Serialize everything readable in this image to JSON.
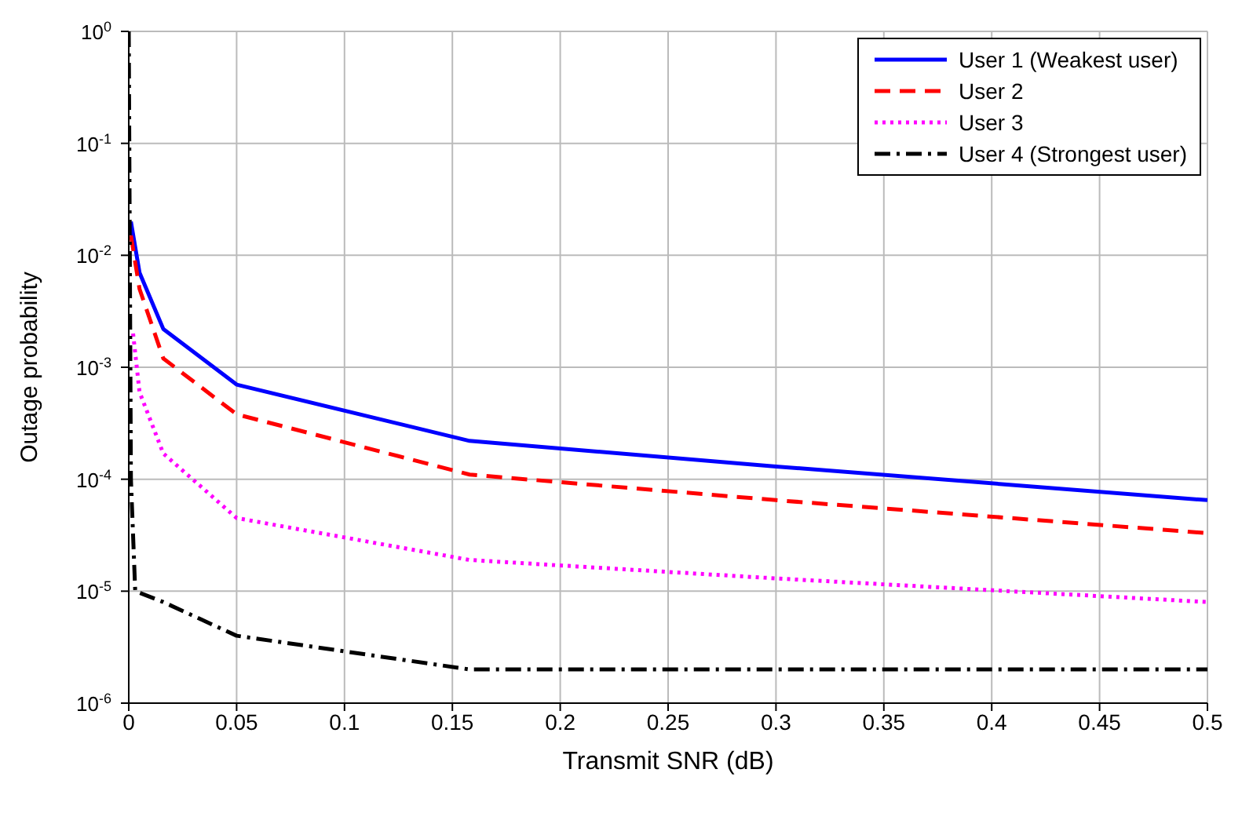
{
  "chart_data": {
    "type": "line",
    "xlabel": "Transmit SNR  (dB)",
    "ylabel": "Outage probability",
    "log": "y",
    "grid": true,
    "legend": "top right",
    "marker": "none",
    "xlim": [
      0,
      0.5
    ],
    "xticks": [
      0,
      0.05,
      0.1,
      0.15,
      0.2,
      0.25,
      0.3,
      0.35,
      0.4,
      0.45,
      0.5
    ],
    "ylim": [
      1e-06,
      1
    ],
    "yticks": [
      {
        "value": 1e-06,
        "label": "10$^{-6}$"
      },
      {
        "value": 1e-05,
        "label": "10$^{-5}$"
      },
      {
        "value": 0.0001,
        "label": "10$^{-4}$"
      },
      {
        "value": 0.001,
        "label": "10$^{-3}$"
      },
      {
        "value": 0.01,
        "label": "10$^{-2}$"
      },
      {
        "value": 0.1,
        "label": "10$^{-1}$"
      },
      {
        "value": 1,
        "label": "10$^{0}$"
      }
    ],
    "series": [
      {
        "name": "User 1 (Weakest user)",
        "color": "#0000ff",
        "line_style": "solid",
        "x": [
          0.001,
          0.005,
          0.016,
          0.05,
          0.158,
          0.3,
          0.5
        ],
        "values": [
          0.02,
          0.007,
          0.0022,
          0.0007,
          0.00022,
          0.00013,
          6.5e-05
        ]
      },
      {
        "name": "User 2",
        "color": "#ff0000",
        "line_style": "dashed",
        "x": [
          0.001,
          0.005,
          0.016,
          0.05,
          0.158,
          0.3,
          0.5
        ],
        "values": [
          0.015,
          0.005,
          0.0012,
          0.00038,
          0.00011,
          6.5e-05,
          3.3e-05
        ]
      },
      {
        "name": "User 3",
        "color": "#ff00ff",
        "line_style": "dotted",
        "x": [
          0.002,
          0.005,
          0.016,
          0.05,
          0.158,
          0.3,
          0.5
        ],
        "values": [
          0.002,
          0.0006,
          0.00017,
          4.5e-05,
          1.9e-05,
          1.3e-05,
          8e-06
        ]
      },
      {
        "name": "User 4 (Strongest user)",
        "color": "#000000",
        "line_style": "dashdot",
        "x": [
          0,
          0.001,
          0.003,
          0.016,
          0.05,
          0.158,
          0.5
        ],
        "values": [
          1,
          0.0001,
          1e-05,
          8e-06,
          4e-06,
          2e-06,
          2e-06
        ]
      }
    ]
  }
}
